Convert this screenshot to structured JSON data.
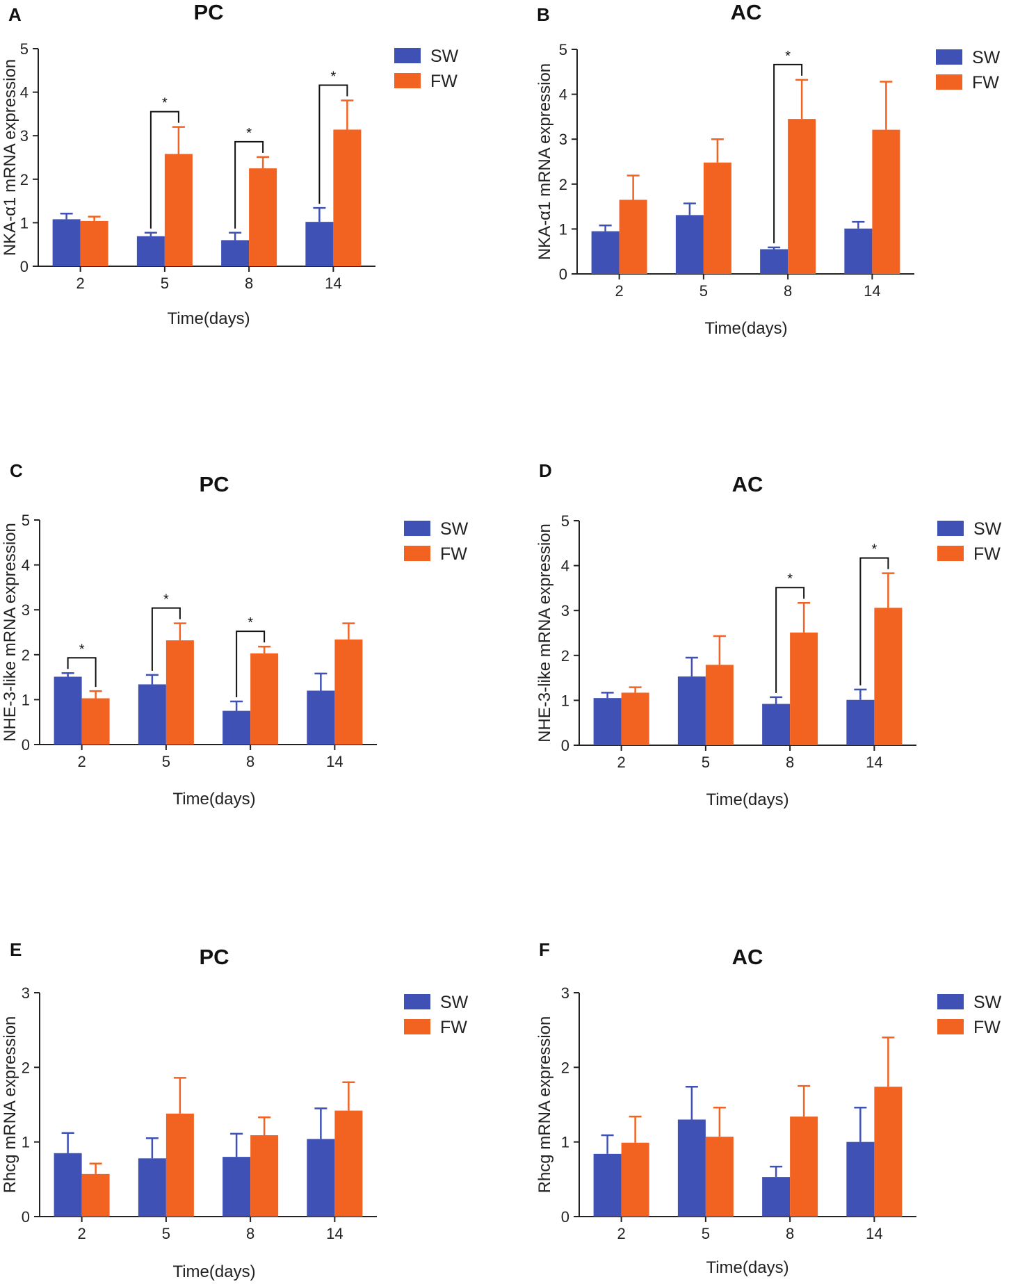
{
  "colors": {
    "sw": "#3f51b5",
    "fw": "#f26322",
    "axis": "#222222"
  },
  "chart_data": [
    {
      "type": "bar",
      "panel": "A",
      "title": "PC",
      "xlabel": "Time(days)",
      "ylabel": "NKA-α1 mRNA expression",
      "ylim": [
        0,
        5
      ],
      "yticks": [
        "0",
        "1",
        "2",
        "3",
        "4",
        "5"
      ],
      "categories": [
        "2",
        "5",
        "8",
        "14"
      ],
      "series": [
        {
          "name": "SW",
          "values": [
            1.08,
            0.69,
            0.6,
            1.02
          ],
          "errors": [
            0.13,
            0.08,
            0.17,
            0.32
          ]
        },
        {
          "name": "FW",
          "values": [
            1.04,
            2.58,
            2.25,
            3.14
          ],
          "errors": [
            0.1,
            0.62,
            0.26,
            0.67
          ]
        }
      ],
      "significance": [
        {
          "category": 1,
          "label": "*"
        },
        {
          "category": 2,
          "label": "*"
        },
        {
          "category": 3,
          "label": "*"
        }
      ]
    },
    {
      "type": "bar",
      "panel": "B",
      "title": "AC",
      "xlabel": "Time(days)",
      "ylabel": "NKA-α1 mRNA expression",
      "ylim": [
        0,
        5
      ],
      "yticks": [
        "0",
        "1",
        "2",
        "3",
        "4",
        "5"
      ],
      "categories": [
        "2",
        "5",
        "8",
        "14"
      ],
      "series": [
        {
          "name": "SW",
          "values": [
            0.95,
            1.31,
            0.55,
            1.01
          ],
          "errors": [
            0.13,
            0.26,
            0.04,
            0.15
          ]
        },
        {
          "name": "FW",
          "values": [
            1.65,
            2.48,
            3.45,
            3.21
          ],
          "errors": [
            0.54,
            0.52,
            0.87,
            1.07
          ]
        }
      ],
      "significance": [
        {
          "category": 2,
          "label": "*"
        }
      ]
    },
    {
      "type": "bar",
      "panel": "C",
      "title": "PC",
      "xlabel": "Time(days)",
      "ylabel": "NHE-3-like mRNA expression",
      "ylim": [
        0,
        5
      ],
      "yticks": [
        "0",
        "1",
        "2",
        "3",
        "4",
        "5"
      ],
      "categories": [
        "2",
        "5",
        "8",
        "14"
      ],
      "series": [
        {
          "name": "SW",
          "values": [
            1.51,
            1.34,
            0.75,
            1.2
          ],
          "errors": [
            0.08,
            0.21,
            0.21,
            0.38
          ]
        },
        {
          "name": "FW",
          "values": [
            1.03,
            2.32,
            2.03,
            2.34
          ],
          "errors": [
            0.16,
            0.38,
            0.15,
            0.36
          ]
        }
      ],
      "significance": [
        {
          "category": 0,
          "label": "*"
        },
        {
          "category": 1,
          "label": "*"
        },
        {
          "category": 2,
          "label": "*"
        }
      ]
    },
    {
      "type": "bar",
      "panel": "D",
      "title": "AC",
      "xlabel": "Time(days)",
      "ylabel": "NHE-3-like mRNA expression",
      "ylim": [
        0,
        5
      ],
      "yticks": [
        "0",
        "1",
        "2",
        "3",
        "4",
        "5"
      ],
      "categories": [
        "2",
        "5",
        "8",
        "14"
      ],
      "series": [
        {
          "name": "SW",
          "values": [
            1.05,
            1.53,
            0.92,
            1.01
          ],
          "errors": [
            0.12,
            0.42,
            0.15,
            0.23
          ]
        },
        {
          "name": "FW",
          "values": [
            1.17,
            1.79,
            2.51,
            3.06
          ],
          "errors": [
            0.12,
            0.64,
            0.66,
            0.77
          ]
        }
      ],
      "significance": [
        {
          "category": 2,
          "label": "*"
        },
        {
          "category": 3,
          "label": "*"
        }
      ]
    },
    {
      "type": "bar",
      "panel": "E",
      "title": "PC",
      "xlabel": "Time(days)",
      "ylabel": "Rhcg mRNA expression",
      "ylim": [
        0,
        3
      ],
      "yticks": [
        "0",
        "1",
        "2",
        "3"
      ],
      "categories": [
        "2",
        "5",
        "8",
        "14"
      ],
      "series": [
        {
          "name": "SW",
          "values": [
            0.85,
            0.78,
            0.8,
            1.04
          ],
          "errors": [
            0.27,
            0.27,
            0.31,
            0.41
          ]
        },
        {
          "name": "FW",
          "values": [
            0.57,
            1.38,
            1.09,
            1.42
          ],
          "errors": [
            0.14,
            0.48,
            0.24,
            0.38
          ]
        }
      ],
      "significance": []
    },
    {
      "type": "bar",
      "panel": "F",
      "title": "AC",
      "xlabel": "Time(days)",
      "ylabel": "Rhcg mRNA expression",
      "ylim": [
        0,
        3
      ],
      "yticks": [
        "0",
        "1",
        "2",
        "3"
      ],
      "categories": [
        "2",
        "5",
        "8",
        "14"
      ],
      "series": [
        {
          "name": "SW",
          "values": [
            0.84,
            1.3,
            0.53,
            1.0
          ],
          "errors": [
            0.25,
            0.44,
            0.14,
            0.46
          ]
        },
        {
          "name": "FW",
          "values": [
            0.99,
            1.07,
            1.34,
            1.74
          ],
          "errors": [
            0.35,
            0.39,
            0.41,
            0.66
          ]
        }
      ],
      "significance": []
    }
  ]
}
